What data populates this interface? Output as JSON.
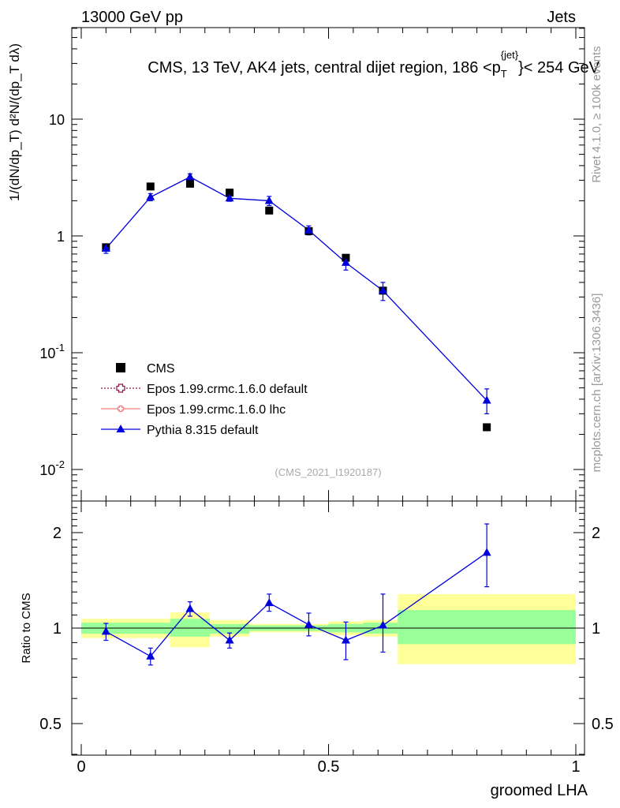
{
  "header": {
    "left": "13000 GeV pp",
    "right": "Jets"
  },
  "main": {
    "title_prefix": "CMS, 13 TeV, AK4 jets, central dijet region, 186 <p",
    "title_sub": "T",
    "title_sup": "{jet}",
    "title_suffix": "}< 254 GeV",
    "ylabel": "1/(dN/dp_T) d²N/(dp_T dλ)",
    "analysis_id": "(CMS_2021_I1920187)"
  },
  "side": {
    "rivet": "Rivet 4.1.0, ≥ 100k events",
    "mcplots": "mcplots.cern.ch [arXiv:1306.3436]"
  },
  "legend": [
    {
      "label": "CMS",
      "color": "#000000",
      "marker": "square"
    },
    {
      "label": "Epos 1.99.crmc.1.6.0 default",
      "color": "#8b1a4a",
      "marker": "open-cross"
    },
    {
      "label": "Epos 1.99.crmc.1.6.0 lhc",
      "color": "#f08080",
      "marker": "open-cross"
    },
    {
      "label": "Pythia 8.315 default",
      "color": "#0000dd",
      "marker": "triangle"
    }
  ],
  "chart_data": [
    {
      "type": "scatter",
      "scale": "log",
      "title": "CMS, 13 TeV, AK4 jets, central dijet region, 186 < pT jet < 254 GeV",
      "xlim": [
        0,
        1
      ],
      "ylim": [
        0.005,
        60
      ],
      "yticks": [
        {
          "value": 0.01,
          "base": "10",
          "exp": "-2"
        },
        {
          "value": 0.1,
          "base": "10",
          "exp": "-1"
        },
        {
          "value": 1,
          "base": "1",
          "exp": ""
        },
        {
          "value": 10,
          "base": "10",
          "exp": ""
        }
      ],
      "x": [
        0.05,
        0.14,
        0.22,
        0.3,
        0.38,
        0.46,
        0.535,
        0.61,
        0.82
      ],
      "series": [
        {
          "name": "CMS",
          "color": "#000000",
          "values": [
            0.8,
            2.65,
            2.8,
            2.35,
            1.65,
            1.1,
            0.65,
            0.34,
            0.023
          ]
        },
        {
          "name": "Pythia 8.315 default",
          "color": "#0000dd",
          "values": [
            0.78,
            2.15,
            3.2,
            2.1,
            2.0,
            1.12,
            0.59,
            0.34,
            0.039
          ],
          "err_lo": [
            0.07,
            0.15,
            0.2,
            0.12,
            0.18,
            0.1,
            0.08,
            0.06,
            0.009
          ],
          "err_hi": [
            0.07,
            0.15,
            0.2,
            0.12,
            0.18,
            0.1,
            0.08,
            0.06,
            0.01
          ]
        }
      ]
    },
    {
      "type": "line",
      "scale": "log",
      "ylabel": "Ratio to CMS",
      "xlabel": "groomed LHA",
      "xlim": [
        0,
        1
      ],
      "ylim": [
        0.4,
        2.4
      ],
      "xticks": [
        0,
        0.5,
        1
      ],
      "xtick_labels": [
        "0",
        "0.5",
        "1"
      ],
      "yticks": [
        0.5,
        1,
        2
      ],
      "ytick_labels": [
        "0.5",
        "1",
        "2"
      ],
      "bands": [
        {
          "x0": 0.0,
          "x1": 0.18,
          "stat_lo": 0.96,
          "stat_hi": 1.04,
          "tot_lo": 0.93,
          "tot_hi": 1.07
        },
        {
          "x0": 0.18,
          "x1": 0.26,
          "stat_lo": 0.94,
          "stat_hi": 1.07,
          "tot_lo": 0.87,
          "tot_hi": 1.12
        },
        {
          "x0": 0.26,
          "x1": 0.34,
          "stat_lo": 0.96,
          "stat_hi": 1.03,
          "tot_lo": 0.94,
          "tot_hi": 1.06
        },
        {
          "x0": 0.34,
          "x1": 0.5,
          "stat_lo": 0.98,
          "stat_hi": 1.02,
          "tot_lo": 0.97,
          "tot_hi": 1.03
        },
        {
          "x0": 0.5,
          "x1": 0.57,
          "stat_lo": 0.97,
          "stat_hi": 1.03,
          "tot_lo": 0.95,
          "tot_hi": 1.05
        },
        {
          "x0": 0.57,
          "x1": 0.64,
          "stat_lo": 0.96,
          "stat_hi": 1.04,
          "tot_lo": 0.94,
          "tot_hi": 1.06
        },
        {
          "x0": 0.64,
          "x1": 1.0,
          "stat_lo": 0.89,
          "stat_hi": 1.14,
          "tot_lo": 0.77,
          "tot_hi": 1.28
        }
      ],
      "series": [
        {
          "name": "Pythia 8.315 default",
          "color": "#0000dd",
          "x": [
            0.05,
            0.14,
            0.22,
            0.3,
            0.38,
            0.46,
            0.535,
            0.61,
            0.82
          ],
          "values": [
            0.975,
            0.815,
            1.15,
            0.915,
            1.2,
            1.025,
            0.915,
            1.02,
            1.73
          ],
          "err_lo": [
            0.06,
            0.05,
            0.06,
            0.05,
            0.07,
            0.08,
            0.12,
            0.18,
            0.38
          ],
          "err_hi": [
            0.06,
            0.05,
            0.06,
            0.05,
            0.08,
            0.09,
            0.13,
            0.26,
            0.4
          ]
        }
      ]
    }
  ]
}
